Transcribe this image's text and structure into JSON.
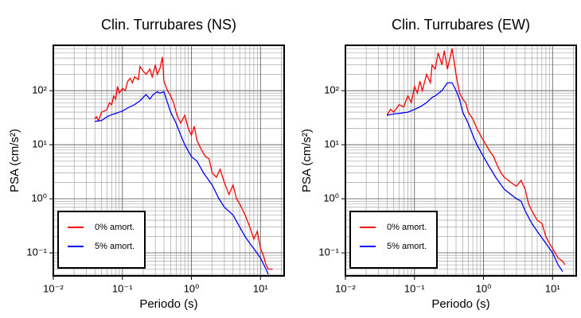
{
  "chart_data": [
    {
      "type": "line",
      "title": "Clin. Turrubares (NS)",
      "x_label": "Periodo (s)",
      "y_label": "PSA (cm/s²)",
      "log_x": true,
      "log_y": true,
      "grid": true,
      "legend": "lower left",
      "xlim": [
        0.01,
        22
      ],
      "ylim": [
        0.0375,
        690
      ],
      "xticks": [
        {
          "value": 0.01,
          "label": "10⁻²"
        },
        {
          "value": 0.1,
          "label": "10⁻¹"
        },
        {
          "value": 1,
          "label": "10⁰"
        },
        {
          "value": 10,
          "label": "10¹"
        }
      ],
      "yticks": [
        {
          "value": 0.1,
          "label": "10⁻¹"
        },
        {
          "value": 1,
          "label": "10⁰"
        },
        {
          "value": 10,
          "label": "10¹"
        },
        {
          "value": 100,
          "label": "10²"
        }
      ],
      "series": [
        {
          "name": "0% amort.",
          "color": "#ff0000",
          "x": [
            0.04,
            0.042,
            0.045,
            0.05,
            0.055,
            0.06,
            0.065,
            0.07,
            0.075,
            0.08,
            0.085,
            0.09,
            0.1,
            0.11,
            0.12,
            0.13,
            0.14,
            0.15,
            0.17,
            0.18,
            0.2,
            0.22,
            0.25,
            0.27,
            0.3,
            0.32,
            0.35,
            0.38,
            0.4,
            0.45,
            0.5,
            0.55,
            0.6,
            0.65,
            0.7,
            0.8,
            0.9,
            1.0,
            1.1,
            1.2,
            1.4,
            1.6,
            1.8,
            2.0,
            2.3,
            2.6,
            3,
            3.5,
            4,
            4.5,
            5,
            6,
            7,
            8,
            9,
            10,
            11,
            12,
            13,
            15
          ],
          "values": [
            30,
            33,
            28,
            40,
            42,
            45,
            60,
            55,
            80,
            70,
            120,
            90,
            110,
            100,
            150,
            170,
            140,
            180,
            160,
            280,
            230,
            200,
            250,
            180,
            300,
            200,
            260,
            420,
            150,
            100,
            80,
            60,
            40,
            30,
            25,
            35,
            20,
            15,
            22,
            12,
            8,
            6,
            5.5,
            3,
            2.5,
            3.5,
            2,
            1.2,
            1.8,
            1,
            0.8,
            0.5,
            0.3,
            0.18,
            0.25,
            0.12,
            0.09,
            0.06,
            0.05,
            0.05
          ]
        },
        {
          "name": "5% amort.",
          "color": "#0000ff",
          "x": [
            0.04,
            0.05,
            0.06,
            0.07,
            0.08,
            0.1,
            0.12,
            0.15,
            0.18,
            0.2,
            0.22,
            0.25,
            0.28,
            0.32,
            0.35,
            0.4,
            0.45,
            0.5,
            0.6,
            0.7,
            0.8,
            1.0,
            1.2,
            1.5,
            2,
            2.5,
            3,
            4,
            5,
            6,
            7,
            8,
            10,
            12,
            13
          ],
          "values": [
            27,
            28,
            33,
            36,
            38,
            42,
            48,
            55,
            65,
            75,
            85,
            70,
            85,
            95,
            90,
            95,
            60,
            40,
            25,
            15,
            10,
            6,
            5,
            3,
            1.8,
            1.0,
            0.7,
            0.5,
            0.3,
            0.2,
            0.15,
            0.12,
            0.08,
            0.05,
            0.04
          ]
        }
      ]
    },
    {
      "type": "line",
      "title": "Clin. Turrubares (EW)",
      "x_label": "Periodo (s)",
      "y_label": "PSA (cm/s²)",
      "log_x": true,
      "log_y": true,
      "grid": true,
      "legend": "lower left",
      "xlim": [
        0.01,
        22
      ],
      "ylim": [
        0.0375,
        690
      ],
      "xticks": [
        {
          "value": 0.01,
          "label": "10⁻²"
        },
        {
          "value": 0.1,
          "label": "10⁻¹"
        },
        {
          "value": 1,
          "label": "10⁰"
        },
        {
          "value": 10,
          "label": "10¹"
        }
      ],
      "yticks": [
        {
          "value": 0.1,
          "label": "10⁻¹"
        },
        {
          "value": 1,
          "label": "10⁰"
        },
        {
          "value": 10,
          "label": "10¹"
        },
        {
          "value": 100,
          "label": "10²"
        }
      ],
      "series": [
        {
          "name": "0% amort.",
          "color": "#ff0000",
          "x": [
            0.04,
            0.045,
            0.05,
            0.06,
            0.07,
            0.08,
            0.09,
            0.1,
            0.11,
            0.12,
            0.13,
            0.15,
            0.17,
            0.18,
            0.2,
            0.22,
            0.25,
            0.27,
            0.3,
            0.35,
            0.4,
            0.45,
            0.5,
            0.55,
            0.6,
            0.7,
            0.8,
            0.9,
            1.0,
            1.2,
            1.4,
            1.6,
            1.8,
            2.0,
            2.5,
            3,
            3.5,
            4,
            4.5,
            5,
            6,
            7,
            8,
            9,
            10,
            12,
            14,
            15
          ],
          "values": [
            35,
            45,
            40,
            55,
            50,
            80,
            60,
            120,
            90,
            150,
            100,
            200,
            140,
            300,
            250,
            500,
            300,
            550,
            250,
            600,
            200,
            90,
            70,
            60,
            40,
            30,
            20,
            15,
            12,
            8,
            6,
            4,
            3,
            2.5,
            2,
            1.7,
            2.2,
            1.5,
            0.8,
            0.6,
            0.4,
            0.35,
            0.2,
            0.15,
            0.12,
            0.08,
            0.07,
            0.06
          ]
        },
        {
          "name": "5% amort.",
          "color": "#0000ff",
          "x": [
            0.04,
            0.05,
            0.06,
            0.08,
            0.1,
            0.12,
            0.15,
            0.18,
            0.2,
            0.25,
            0.3,
            0.35,
            0.4,
            0.45,
            0.5,
            0.6,
            0.7,
            0.8,
            1.0,
            1.2,
            1.5,
            2,
            2.5,
            3,
            3.5,
            4,
            5,
            6,
            8,
            10,
            12,
            14
          ],
          "values": [
            35,
            37,
            38,
            40,
            45,
            50,
            60,
            75,
            80,
            100,
            140,
            140,
            100,
            70,
            40,
            25,
            15,
            10,
            6,
            4,
            2.5,
            1.5,
            1.2,
            1.0,
            0.9,
            0.6,
            0.35,
            0.25,
            0.15,
            0.1,
            0.06,
            0.045
          ]
        }
      ]
    }
  ]
}
